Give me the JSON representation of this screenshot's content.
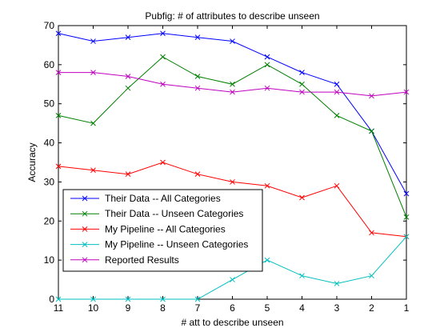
{
  "chart_data": {
    "type": "line",
    "title": "Pubfig: # of attributes to describe unseen",
    "xlabel": "# att to describe unseen",
    "ylabel": "Accuracy",
    "x": [
      11,
      10,
      9,
      8,
      7,
      6,
      5,
      4,
      3,
      2,
      1
    ],
    "x_reversed": true,
    "xlim": [
      11,
      1
    ],
    "ylim": [
      0,
      70
    ],
    "yticks": [
      0,
      10,
      20,
      30,
      40,
      50,
      60,
      70
    ],
    "grid": false,
    "legend_position": "lower-left",
    "series": [
      {
        "name": "Their Data -- All Categories",
        "color": "#0000ff",
        "values": [
          68,
          66,
          67,
          68,
          67,
          66,
          62,
          58,
          55,
          43,
          27
        ]
      },
      {
        "name": "Their Data -- Unseen Categories",
        "color": "#008000",
        "values": [
          47,
          45,
          54,
          62,
          57,
          55,
          60,
          55,
          47,
          43,
          21
        ]
      },
      {
        "name": "My Pipeline -- All Categories",
        "color": "#ff0000",
        "values": [
          34,
          33,
          32,
          35,
          32,
          30,
          29,
          26,
          29,
          17,
          16
        ]
      },
      {
        "name": "My Pipeline -- Unseen Categories",
        "color": "#00bfbf",
        "values": [
          0,
          0,
          0,
          0,
          0,
          5,
          10,
          6,
          4,
          6,
          16
        ]
      },
      {
        "name": "Reported Results",
        "color": "#bf00bf",
        "values": [
          58,
          58,
          57,
          55,
          54,
          53,
          54,
          53,
          53,
          52,
          53
        ]
      }
    ],
    "marker": "x"
  }
}
